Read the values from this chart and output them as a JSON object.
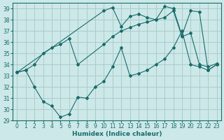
{
  "xlabel": "Humidex (Indice chaleur)",
  "xlim": [
    -0.5,
    23.5
  ],
  "ylim": [
    29,
    39.5
  ],
  "yticks": [
    29,
    30,
    31,
    32,
    33,
    34,
    35,
    36,
    37,
    38,
    39
  ],
  "xticks": [
    0,
    1,
    2,
    3,
    4,
    5,
    6,
    7,
    8,
    9,
    10,
    11,
    12,
    13,
    14,
    15,
    16,
    17,
    18,
    19,
    20,
    21,
    22,
    23
  ],
  "bg_color": "#cde8e8",
  "grid_color": "#aacccc",
  "line_color": "#1a6b6b",
  "line1_x": [
    0,
    10,
    11,
    12,
    13,
    14,
    15,
    16,
    17,
    18,
    19,
    20,
    21,
    22,
    23
  ],
  "line1_y": [
    33.3,
    38.8,
    39.1,
    37.4,
    38.3,
    38.5,
    38.2,
    38.0,
    39.2,
    39.0,
    36.6,
    38.8,
    38.7,
    33.5,
    34.0
  ],
  "line2_x": [
    0,
    1,
    2,
    3,
    4,
    5,
    6,
    7,
    10,
    11,
    12,
    13,
    14,
    15,
    16,
    17,
    18,
    19,
    20,
    21,
    22,
    23
  ],
  "line2_y": [
    33.3,
    33.5,
    34.0,
    35.0,
    35.5,
    35.8,
    36.3,
    34.0,
    35.8,
    36.5,
    37.0,
    37.3,
    37.6,
    37.8,
    38.0,
    38.2,
    38.8,
    36.5,
    36.8,
    34.0,
    33.8,
    34.1
  ],
  "line3_x": [
    0,
    1,
    2,
    3,
    4,
    5,
    6,
    7,
    8,
    9,
    10,
    11,
    12,
    13,
    14,
    15,
    16,
    17,
    18,
    19,
    20,
    21,
    22,
    23
  ],
  "line3_y": [
    33.3,
    33.5,
    32.0,
    30.7,
    30.3,
    29.3,
    29.6,
    31.1,
    31.0,
    32.0,
    32.5,
    33.8,
    35.5,
    33.0,
    33.2,
    33.5,
    34.0,
    34.5,
    35.5,
    37.0,
    34.0,
    33.8,
    33.5,
    34.0
  ]
}
